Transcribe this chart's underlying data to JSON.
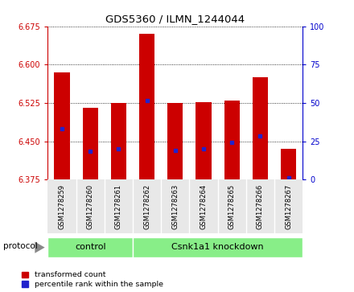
{
  "title": "GDS5360 / ILMN_1244044",
  "samples": [
    "GSM1278259",
    "GSM1278260",
    "GSM1278261",
    "GSM1278262",
    "GSM1278263",
    "GSM1278264",
    "GSM1278265",
    "GSM1278266",
    "GSM1278267"
  ],
  "bar_tops": [
    6.585,
    6.515,
    6.525,
    6.66,
    6.525,
    6.527,
    6.53,
    6.575,
    6.435
  ],
  "bar_bottom": 6.375,
  "blue_marker_values": [
    6.475,
    6.43,
    6.435,
    6.53,
    6.432,
    6.435,
    6.448,
    6.46,
    6.378
  ],
  "ylim": [
    6.375,
    6.675
  ],
  "yticks_left": [
    6.375,
    6.45,
    6.525,
    6.6,
    6.675
  ],
  "yticks_right": [
    0,
    25,
    50,
    75,
    100
  ],
  "n_control": 3,
  "control_label": "control",
  "knockdown_label": "Csnk1a1 knockdown",
  "protocol_label": "protocol",
  "legend_red": "transformed count",
  "legend_blue": "percentile rank within the sample",
  "bar_color": "#cc0000",
  "blue_color": "#2222cc",
  "bg_color": "#e8e8e8",
  "green_color": "#88ee88",
  "left_axis_color": "#cc0000",
  "right_axis_color": "#0000cc",
  "bar_width": 0.55
}
